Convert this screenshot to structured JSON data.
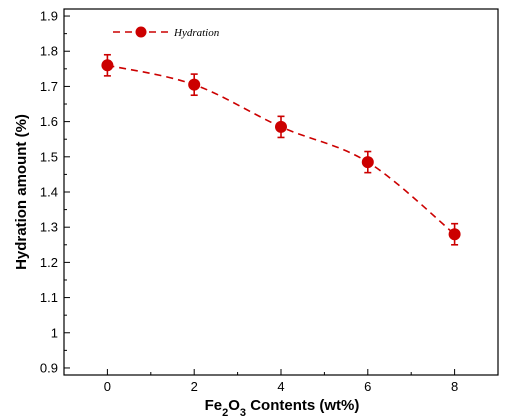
{
  "chart_data": {
    "type": "line",
    "title": "",
    "xlabel": {
      "prefix": "Fe",
      "sub1": "2",
      "mid": "O",
      "sub2": "3",
      "suffix": " Contents (wt%)"
    },
    "ylabel": "Hydration amount (%)",
    "xlim": [
      -1,
      9
    ],
    "ylim": [
      0.88,
      1.92
    ],
    "xticks": [
      0,
      2,
      4,
      6,
      8
    ],
    "xtick_labels": [
      "0",
      "2",
      "4",
      "6",
      "8"
    ],
    "yticks": [
      0.9,
      1.0,
      1.1,
      1.2,
      1.3,
      1.4,
      1.5,
      1.6,
      1.7,
      1.8,
      1.9
    ],
    "ytick_labels": [
      "0.9",
      "1",
      "1.1",
      "1.2",
      "1.3",
      "1.4",
      "1.5",
      "1.6",
      "1.7",
      "1.8",
      "1.9"
    ],
    "grid": false,
    "legend_position": "top-left",
    "series": [
      {
        "name": "Hydration",
        "color": "#cc0000",
        "line_style": "dashed",
        "marker": "circle",
        "x": [
          0,
          2,
          4,
          6,
          8
        ],
        "y": [
          1.76,
          1.705,
          1.585,
          1.485,
          1.28
        ],
        "error": [
          0.03,
          0.03,
          0.03,
          0.03,
          0.03
        ]
      }
    ]
  }
}
